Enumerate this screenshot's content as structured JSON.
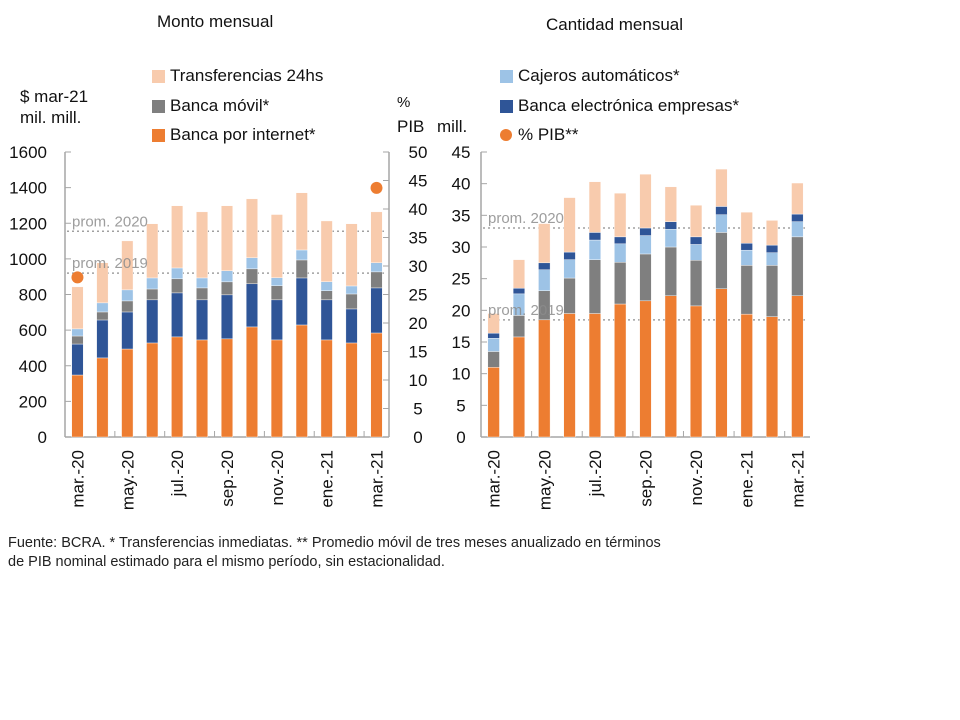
{
  "chart_data": [
    {
      "type": "bar",
      "stacked": true,
      "title": "Monto mensual",
      "ylabel": "$ mar-21 mil. mill.",
      "y2label": "% PIB",
      "ylim": [
        0,
        1600
      ],
      "yticks": [
        0,
        200,
        400,
        600,
        800,
        1000,
        1200,
        1400,
        1600
      ],
      "y2lim": [
        0,
        50
      ],
      "y2ticks": [
        0,
        5,
        10,
        15,
        20,
        25,
        30,
        35,
        40,
        45,
        50
      ],
      "categories": [
        "mar.-20",
        "abr.-20",
        "may.-20",
        "jun.-20",
        "jul.-20",
        "ago.-20",
        "sep.-20",
        "oct.-20",
        "nov.-20",
        "dic.-20",
        "ene.-21",
        "feb.-21",
        "mar.-21"
      ],
      "tick_labels": [
        "mar.-20",
        "may.-20",
        "jul.-20",
        "sep.-20",
        "nov.-20",
        "ene.-21",
        "mar.-21"
      ],
      "series": [
        {
          "name": "Banca por internet*",
          "color": "#ED7D31",
          "values": [
            348,
            444,
            494,
            528,
            562,
            545,
            551,
            618,
            545,
            629,
            545,
            528,
            584
          ]
        },
        {
          "name": "Banca electrónica empresas*",
          "color": "#2F5597",
          "values": [
            174,
            213,
            208,
            242,
            247,
            225,
            247,
            242,
            225,
            264,
            225,
            191,
            253
          ]
        },
        {
          "name": "Banca móvil*",
          "color": "#7F7F7F",
          "values": [
            45,
            45,
            62,
            61,
            79,
            67,
            73,
            84,
            79,
            101,
            51,
            84,
            90
          ]
        },
        {
          "name": "Cajeros automáticos*",
          "color": "#9DC3E6",
          "values": [
            40,
            51,
            62,
            62,
            61,
            56,
            62,
            62,
            45,
            56,
            51,
            45,
            51
          ]
        },
        {
          "name": "Transferencias 24hs",
          "color": "#F8CBAD",
          "values": [
            236,
            225,
            275,
            304,
            349,
            371,
            365,
            331,
            355,
            321,
            341,
            349,
            286
          ]
        }
      ],
      "overlay": {
        "name": "% PIB**",
        "color": "#ED7D31",
        "axis": "right",
        "points": [
          {
            "category": "mar.-20",
            "value": 28
          },
          {
            "category": "mar.-21",
            "value": 43.7
          }
        ]
      },
      "reference_lines": [
        {
          "label": "prom. 2020",
          "value": 1155
        },
        {
          "label": "prom. 2019",
          "value": 920
        }
      ]
    },
    {
      "type": "bar",
      "stacked": true,
      "title": "Cantidad mensual",
      "ylabel": "mill.",
      "ylim": [
        0,
        45
      ],
      "yticks": [
        0,
        5,
        10,
        15,
        20,
        25,
        30,
        35,
        40,
        45
      ],
      "categories": [
        "mar.-20",
        "abr.-20",
        "may.-20",
        "jun.-20",
        "jul.-20",
        "ago.-20",
        "sep.-20",
        "oct.-20",
        "nov.-20",
        "dic.-20",
        "ene.-21",
        "feb.-21",
        "mar.-21"
      ],
      "tick_labels": [
        "mar.-20",
        "may.-20",
        "jul.-20",
        "sep.-20",
        "nov.-20",
        "ene.-21",
        "mar.-21"
      ],
      "series": [
        {
          "name": "Banca por internet*",
          "color": "#ED7D31",
          "values": [
            11.0,
            15.8,
            18.5,
            19.5,
            19.5,
            21.0,
            21.5,
            22.3,
            20.7,
            23.4,
            19.4,
            19.0,
            22.3
          ]
        },
        {
          "name": "Banca móvil*",
          "color": "#7F7F7F",
          "values": [
            2.5,
            3.4,
            4.6,
            5.6,
            8.5,
            6.6,
            7.4,
            7.7,
            7.2,
            8.9,
            7.7,
            8.1,
            9.3
          ]
        },
        {
          "name": "Cajeros automáticos*",
          "color": "#9DC3E6",
          "values": [
            2.1,
            3.4,
            3.3,
            2.9,
            3.1,
            2.9,
            2.9,
            2.8,
            2.5,
            2.8,
            2.4,
            2.0,
            2.4
          ]
        },
        {
          "name": "Banca electrónica empresas*",
          "color": "#2F5597",
          "values": [
            0.8,
            0.9,
            1.1,
            1.2,
            1.2,
            1.1,
            1.2,
            1.2,
            1.2,
            1.3,
            1.1,
            1.2,
            1.2
          ]
        },
        {
          "name": "Transferencias 24hs",
          "color": "#F8CBAD",
          "values": [
            3.1,
            4.5,
            6.2,
            8.6,
            8.0,
            6.9,
            8.5,
            5.5,
            5.0,
            5.9,
            4.9,
            3.9,
            4.9
          ]
        }
      ],
      "reference_lines": [
        {
          "label": "prom. 2020",
          "value": 33.0
        },
        {
          "label": "prom. 2019",
          "value": 18.5
        }
      ]
    }
  ],
  "left": {
    "title": "Monto mensual",
    "axis_label_line1": "$ mar-21",
    "axis_label_line2": "mil. mill.",
    "right_axis_label_line1": "%",
    "right_axis_label_line2": "PIB",
    "legend": [
      "Transferencias 24hs",
      "Banca móvil*",
      "Banca por internet*"
    ]
  },
  "right": {
    "title": "Cantidad mensual",
    "axis_label": "mill.",
    "legend": [
      "Cajeros automáticos*",
      "Banca electrónica empresas*",
      "% PIB**"
    ]
  },
  "colors": {
    "internet": "#ED7D31",
    "empresas": "#2F5597",
    "movil": "#7F7F7F",
    "cajeros": "#9DC3E6",
    "t24": "#F8CBAD"
  },
  "footer": {
    "line1": "Fuente: BCRA. * Transferencias inmediatas. ** Promedio móvil de tres meses anualizado en términos",
    "line2": "de PIB nominal estimado para el mismo período, sin estacionalidad."
  }
}
